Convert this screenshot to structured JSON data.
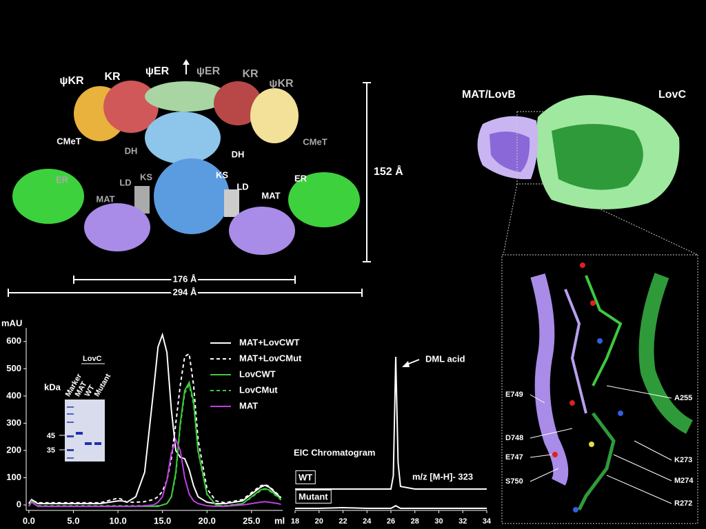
{
  "structure": {
    "domain_labels": [
      "ψKR",
      "KR",
      "ψER",
      "ψER",
      "KR",
      "ψKR",
      "CMeT",
      "DH",
      "DH",
      "CMeT",
      "ER",
      "LD",
      "KS",
      "KS",
      "LD",
      "ER",
      "MAT",
      "MAT"
    ],
    "dimensions": [
      "152 Å",
      "176 Å",
      "294 Å"
    ]
  },
  "complex": {
    "labels": [
      "MAT/LovB",
      "LovC"
    ]
  },
  "detail": {
    "residues": [
      "E749",
      "D748",
      "E747",
      "S750",
      "A255",
      "K273",
      "M274",
      "R272"
    ]
  },
  "gel": {
    "title": "LovC",
    "unit": "kDa",
    "lanes": [
      "Marker",
      "MAT",
      "WT",
      "Mutant"
    ],
    "markers": [
      "45",
      "35"
    ]
  },
  "chart_data": [
    {
      "type": "line",
      "y_label": "mAU",
      "x_label": "ml",
      "x": [
        0,
        0.3,
        1,
        3,
        5,
        8,
        10,
        10.5,
        11,
        12,
        13,
        14,
        14.5,
        15,
        15.5,
        16,
        16.5,
        17,
        17.5,
        18,
        18.5,
        19,
        20,
        21,
        22,
        24,
        25,
        26,
        26.5,
        27,
        28,
        28.3
      ],
      "xlim": [
        -0.3,
        28.5
      ],
      "xticks": [
        {
          "value": 0,
          "label": "0.0"
        },
        {
          "value": 5,
          "label": "5.0"
        },
        {
          "value": 10,
          "label": "10.0"
        },
        {
          "value": 15,
          "label": "15.0"
        },
        {
          "value": 20,
          "label": "20.0"
        },
        {
          "value": 25,
          "label": "25.0"
        }
      ],
      "ylim": [
        -20,
        650
      ],
      "yticks": [
        0,
        100,
        200,
        300,
        400,
        500,
        600
      ],
      "series": [
        {
          "name": "MAT+LovCWT",
          "color": "#ffffff",
          "dashed": false,
          "values": [
            5,
            20,
            5,
            5,
            5,
            5,
            15,
            15,
            10,
            30,
            120,
            420,
            580,
            625,
            560,
            350,
            200,
            175,
            170,
            130,
            70,
            30,
            10,
            5,
            5,
            15,
            40,
            65,
            72,
            65,
            35,
            25
          ]
        },
        {
          "name": "MAT+LovCMut",
          "color": "#ffffff",
          "dashed": true,
          "values": [
            5,
            18,
            8,
            8,
            8,
            8,
            25,
            20,
            10,
            10,
            12,
            20,
            30,
            50,
            90,
            170,
            300,
            440,
            545,
            555,
            440,
            240,
            60,
            15,
            8,
            20,
            45,
            70,
            75,
            68,
            38,
            28
          ]
        },
        {
          "name": "LovCWT",
          "color": "#3ec93e",
          "dashed": false,
          "values": [
            -5,
            15,
            -5,
            -5,
            -5,
            -5,
            -5,
            -5,
            -5,
            -5,
            -5,
            -5,
            -5,
            0,
            5,
            30,
            120,
            300,
            420,
            450,
            380,
            200,
            40,
            0,
            -5,
            5,
            30,
            55,
            60,
            55,
            30,
            20
          ]
        },
        {
          "name": "LovCMut",
          "color": "#3ec93e",
          "dashed": true,
          "values": [
            -3,
            12,
            -3,
            -3,
            -3,
            -3,
            -3,
            -3,
            -3,
            -3,
            -3,
            -3,
            -3,
            0,
            5,
            28,
            110,
            290,
            410,
            440,
            370,
            195,
            38,
            0,
            -3,
            5,
            28,
            52,
            58,
            52,
            28,
            18
          ]
        },
        {
          "name": "MAT",
          "color": "#c040e0",
          "dashed": false,
          "values": [
            -5,
            10,
            -5,
            -5,
            -5,
            -5,
            -5,
            -5,
            -5,
            -5,
            -3,
            0,
            10,
            30,
            90,
            190,
            240,
            200,
            100,
            40,
            15,
            5,
            -3,
            -5,
            -5,
            0,
            5,
            10,
            12,
            10,
            5,
            2
          ]
        }
      ]
    },
    {
      "type": "trace",
      "title": "EIC Chromatogram",
      "annotation": "DML acid",
      "ion_label": "m/z [M-H]- 323",
      "x": [
        18,
        20,
        22,
        24,
        26,
        26.2,
        26.4,
        26.6,
        26.8,
        28,
        30,
        32,
        34
      ],
      "xlim": [
        18,
        34
      ],
      "xticks": [
        18,
        20,
        22,
        24,
        26,
        28,
        30,
        32,
        34
      ],
      "series": [
        {
          "name": "WT",
          "color": "#ffffff",
          "values": [
            0,
            0,
            0,
            0,
            0,
            10,
            100,
            20,
            2,
            0,
            0,
            0,
            0
          ]
        },
        {
          "name": "Mutant",
          "color": "#ffffff",
          "values": [
            0,
            0,
            0.5,
            0,
            0,
            1,
            2,
            1,
            0,
            0,
            0,
            0,
            0
          ]
        }
      ]
    }
  ]
}
